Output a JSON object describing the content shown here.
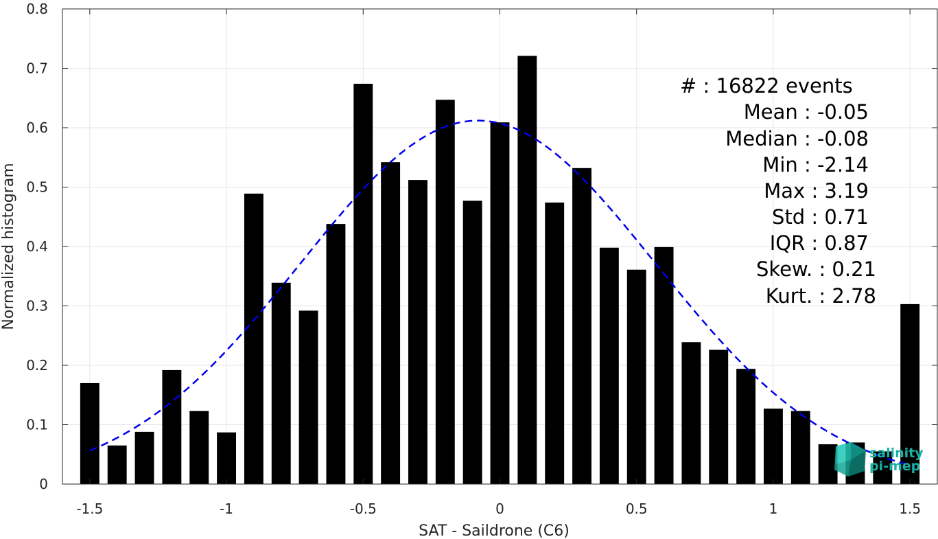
{
  "chart_data": {
    "type": "bar",
    "xlabel": "SAT - Saildrone (C6)",
    "ylabel": "Normalized histogram",
    "xlim": [
      -1.6,
      1.6
    ],
    "ylim": [
      0,
      0.8
    ],
    "xticks": [
      -1.5,
      -1,
      -0.5,
      0,
      0.5,
      1,
      1.5
    ],
    "xtick_labels": [
      "-1.5",
      "-1",
      "-0.5",
      "0",
      "0.5",
      "1",
      "1.5"
    ],
    "yticks": [
      0,
      0.1,
      0.2,
      0.3,
      0.4,
      0.5,
      0.6,
      0.7,
      0.8
    ],
    "ytick_labels": [
      "0",
      "0.1",
      "0.2",
      "0.3",
      "0.4",
      "0.5",
      "0.6",
      "0.7",
      "0.8"
    ],
    "grid": true,
    "bar_width": 0.07,
    "bar_color": "#000000",
    "bins": [
      {
        "x": -1.5,
        "value": 0.17
      },
      {
        "x": -1.4,
        "value": 0.065
      },
      {
        "x": -1.3,
        "value": 0.088
      },
      {
        "x": -1.2,
        "value": 0.192
      },
      {
        "x": -1.1,
        "value": 0.123
      },
      {
        "x": -1.0,
        "value": 0.087
      },
      {
        "x": -0.9,
        "value": 0.489
      },
      {
        "x": -0.8,
        "value": 0.339
      },
      {
        "x": -0.7,
        "value": 0.292
      },
      {
        "x": -0.6,
        "value": 0.438
      },
      {
        "x": -0.5,
        "value": 0.674
      },
      {
        "x": -0.4,
        "value": 0.542
      },
      {
        "x": -0.3,
        "value": 0.512
      },
      {
        "x": -0.2,
        "value": 0.647
      },
      {
        "x": -0.1,
        "value": 0.477
      },
      {
        "x": 0.0,
        "value": 0.609
      },
      {
        "x": 0.1,
        "value": 0.721
      },
      {
        "x": 0.2,
        "value": 0.474
      },
      {
        "x": 0.3,
        "value": 0.532
      },
      {
        "x": 0.4,
        "value": 0.398
      },
      {
        "x": 0.5,
        "value": 0.361
      },
      {
        "x": 0.6,
        "value": 0.399
      },
      {
        "x": 0.7,
        "value": 0.239
      },
      {
        "x": 0.8,
        "value": 0.226
      },
      {
        "x": 0.9,
        "value": 0.194
      },
      {
        "x": 1.0,
        "value": 0.127
      },
      {
        "x": 1.1,
        "value": 0.123
      },
      {
        "x": 1.2,
        "value": 0.067
      },
      {
        "x": 1.3,
        "value": 0.07
      },
      {
        "x": 1.4,
        "value": 0.055
      },
      {
        "x": 1.5,
        "value": 0.303
      }
    ],
    "fit_curve": {
      "style": "dashed",
      "color": "#0000ee",
      "mean": -0.08,
      "std": 0.65,
      "peak": 0.612,
      "x_range": [
        -1.5,
        1.5
      ]
    },
    "stats": [
      {
        "label": "#  : 16822 events"
      },
      {
        "label": "Mean : -0.05"
      },
      {
        "label": "Median : -0.08"
      },
      {
        "label": "Min : -2.14"
      },
      {
        "label": "Max : 3.19"
      },
      {
        "label": "Std : 0.71"
      },
      {
        "label": "IQR : 0.87"
      },
      {
        "label": "Skew. : 0.21"
      },
      {
        "label": "Kurt. : 2.78"
      }
    ]
  },
  "logo": {
    "line1": "salinity",
    "line2": "pi-mep",
    "color": "#19b3a6"
  }
}
